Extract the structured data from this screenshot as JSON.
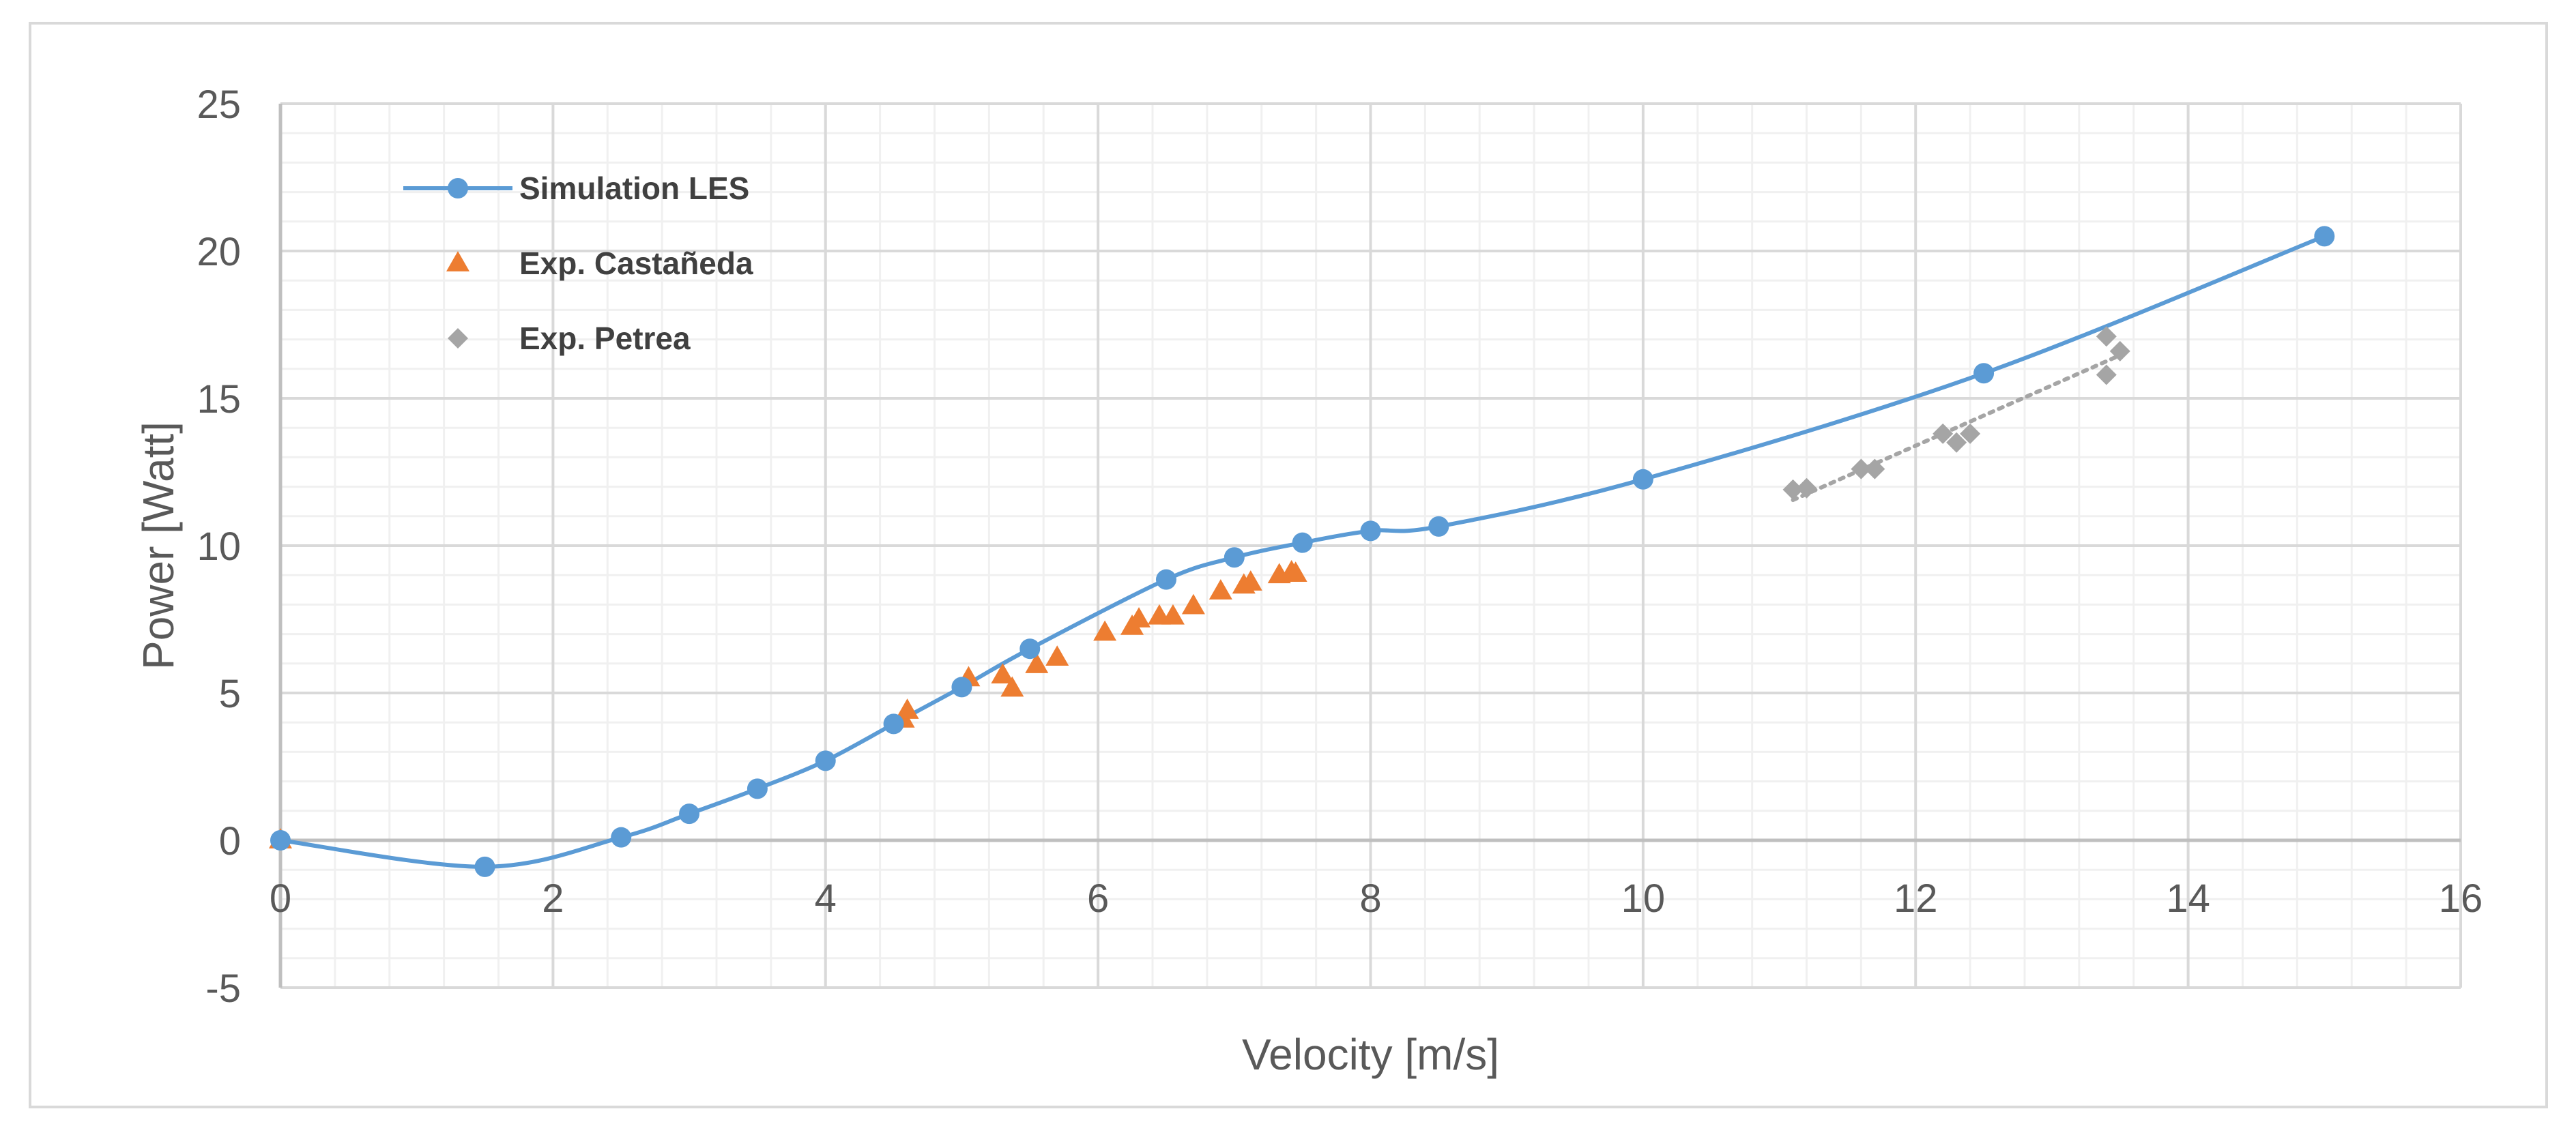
{
  "chart_data": {
    "type": "scatter",
    "title": "",
    "xlabel": "Velocity [m/s]",
    "ylabel": "Power [Watt]",
    "xlim": [
      0,
      16
    ],
    "ylim": [
      -5,
      25
    ],
    "x_ticks": [
      0,
      2,
      4,
      6,
      8,
      10,
      12,
      14,
      16
    ],
    "y_ticks": [
      -5,
      0,
      5,
      10,
      15,
      20,
      25
    ],
    "x_tick_labels": [
      "0",
      "2",
      "4",
      "6",
      "8",
      "10",
      "12",
      "14",
      "16"
    ],
    "y_tick_labels": [
      "-5",
      "0",
      "5",
      "10",
      "15",
      "20",
      "25"
    ],
    "grid": {
      "major": true,
      "minor": true,
      "minor_x_step": 0.4,
      "minor_y_step": 1
    },
    "legend_position": "top-left",
    "series": [
      {
        "name": "Simulation LES",
        "style": "line-smooth-markers",
        "marker": "circle",
        "color": "#5b9bd5",
        "x": [
          0,
          1.5,
          2.5,
          3,
          3.5,
          4,
          4.5,
          5,
          5.5,
          6.5,
          7,
          7.5,
          8,
          8.5,
          10,
          12.5,
          15
        ],
        "y": [
          0,
          -0.9,
          0.1,
          0.9,
          1.75,
          2.7,
          3.95,
          5.2,
          6.5,
          8.85,
          9.6,
          10.1,
          10.5,
          10.65,
          12.25,
          15.85,
          20.5
        ]
      },
      {
        "name": "Exp. Castañeda",
        "style": "markers",
        "marker": "triangle",
        "color": "#ed7d31",
        "x": [
          0,
          4.57,
          4.6,
          5.05,
          5.3,
          5.37,
          5.55,
          5.7,
          6.05,
          6.25,
          6.3,
          6.45,
          6.55,
          6.7,
          6.9,
          7.07,
          7.12,
          7.33,
          7.42,
          7.45
        ],
        "y": [
          0,
          4.1,
          4.4,
          5.5,
          5.6,
          5.15,
          5.95,
          6.2,
          7.05,
          7.25,
          7.5,
          7.6,
          7.6,
          7.95,
          8.45,
          8.65,
          8.75,
          9.0,
          9.1,
          9.05
        ]
      },
      {
        "name": "Exp. Petrea",
        "style": "markers-with-dotted-trend",
        "marker": "diamond",
        "color": "#a5a5a5",
        "x": [
          11.1,
          11.2,
          11.6,
          11.7,
          12.2,
          12.3,
          12.4,
          13.4,
          13.4,
          13.5
        ],
        "y": [
          11.9,
          11.95,
          12.6,
          12.6,
          13.8,
          13.5,
          13.8,
          15.8,
          17.1,
          16.6
        ]
      }
    ]
  }
}
